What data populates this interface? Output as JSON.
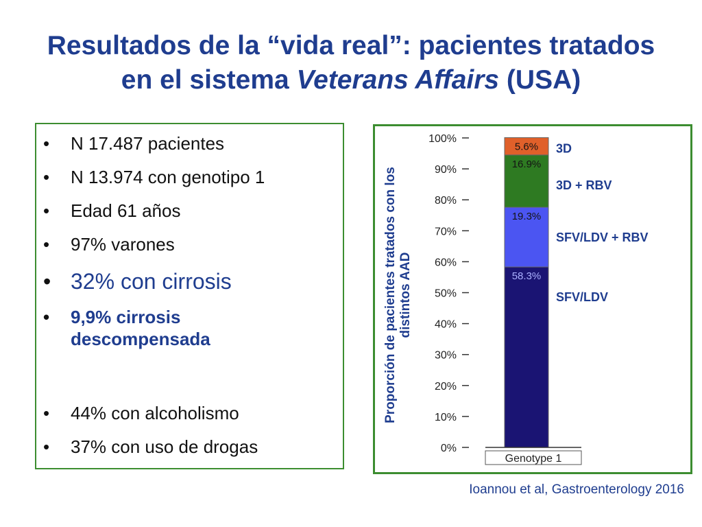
{
  "slide": {
    "title_line1": "Resultados de la “vida real”: pacientes tratados",
    "title_line2_prefix": "en el sistema ",
    "title_line2_italic": "Veterans Affairs",
    "title_line2_suffix": " (USA)",
    "bullets": [
      "N 17.487 pacientes",
      "N 13.974 con genotipo 1",
      "Edad 61 años",
      "97% varones",
      "32% con cirrosis",
      "9,9% cirrosis descompensada",
      "44% con alcoholismo",
      "37% con uso de drogas"
    ],
    "source": "Ioannou et al, Gastroenterology 2016"
  },
  "chart_data": {
    "type": "bar",
    "stacked": true,
    "categories": [
      "Genotype 1"
    ],
    "ylabel": "Proporción de pacientes tratados con los distintos AAD",
    "ylim": [
      0,
      100
    ],
    "yticks": [
      "0%",
      "10%",
      "20%",
      "30%",
      "40%",
      "50%",
      "60%",
      "70%",
      "80%",
      "90%",
      "100%"
    ],
    "grid": false,
    "series": [
      {
        "name": "SFV/LDV",
        "values": [
          58.3
        ],
        "label": "58.3%",
        "color": "#1a1473"
      },
      {
        "name": "SFV/LDV + RBV",
        "values": [
          19.3
        ],
        "label": "19.3%",
        "color": "#4b55f2"
      },
      {
        "name": "3D + RBV",
        "values": [
          16.9
        ],
        "label": "16.9%",
        "color": "#2e7a22"
      },
      {
        "name": "3D",
        "values": [
          5.6
        ],
        "label": "5.6%",
        "color": "#e0602a"
      }
    ],
    "colors": {
      "accent": "#1f3d8f",
      "frame": "#3c8d30"
    }
  }
}
